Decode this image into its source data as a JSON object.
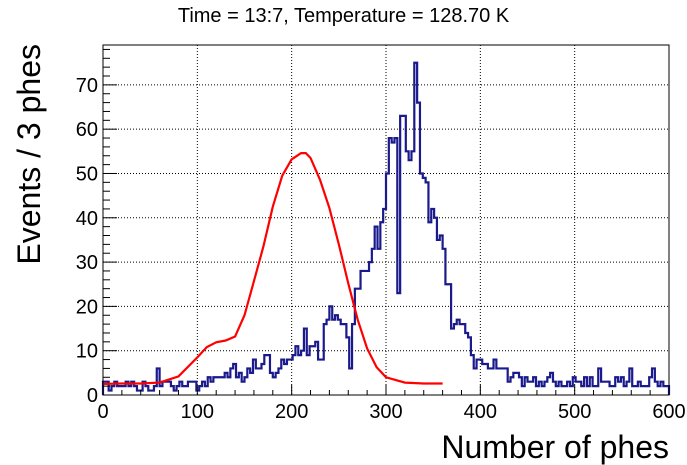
{
  "chart_data": {
    "type": "histogram",
    "title": "Time = 13:7, Temperature = 128.70 K",
    "xlabel": "Number of phes",
    "ylabel": "Events / 3 phes",
    "xlim": [
      0,
      600
    ],
    "ylim": [
      0,
      79
    ],
    "bin_width": 3,
    "grid": true,
    "x_ticks": [
      0,
      100,
      200,
      300,
      400,
      500,
      600
    ],
    "y_ticks": [
      0,
      10,
      20,
      30,
      40,
      50,
      60,
      70
    ],
    "colors": {
      "histogram": "#1a1a8c",
      "fit": "#ff0000",
      "grid": "#000000"
    },
    "series": [
      {
        "kind": "histogram",
        "values": [
          3,
          3,
          1,
          2,
          3,
          2,
          2,
          2,
          3,
          2,
          3,
          2,
          1,
          1,
          3,
          2,
          1,
          1,
          2,
          6,
          2,
          3,
          3,
          3,
          2,
          1,
          2,
          3,
          2,
          2,
          3,
          3,
          3,
          1,
          2,
          3,
          2,
          4,
          3,
          4,
          4,
          4,
          4,
          5,
          4,
          6,
          7,
          4,
          5,
          3,
          4,
          6,
          5,
          8,
          6,
          6,
          7,
          9,
          9,
          5,
          4,
          5,
          6,
          8,
          7,
          8,
          8,
          9,
          11,
          9,
          10,
          15,
          9,
          11,
          11,
          12,
          8,
          8,
          16,
          17,
          20,
          17,
          18,
          17,
          16,
          16,
          13,
          6,
          16,
          24,
          24,
          28,
          28,
          28,
          30,
          33,
          38,
          33,
          39,
          42,
          50,
          58,
          57,
          58,
          23,
          63,
          63,
          55,
          53,
          55,
          75,
          66,
          50,
          49,
          48,
          39,
          42,
          40,
          35,
          36,
          33,
          25,
          25,
          15,
          16,
          17,
          16,
          16,
          14,
          13,
          9,
          6,
          8,
          8,
          7,
          7,
          6,
          6,
          8,
          6,
          6,
          6,
          6,
          3,
          4,
          5,
          5,
          4,
          2,
          4,
          3,
          3,
          4,
          2,
          3,
          2,
          3,
          4,
          5,
          3,
          2,
          3,
          2,
          2,
          3,
          2,
          4,
          3,
          3,
          2,
          4,
          2,
          4,
          2,
          2,
          6,
          3,
          3,
          3,
          2,
          2,
          4,
          3,
          4,
          2,
          3,
          6,
          2,
          2,
          3,
          2,
          2,
          2,
          4,
          6,
          3,
          2,
          3,
          2,
          2
        ]
      },
      {
        "kind": "line",
        "x": [
          0,
          20,
          40,
          60,
          80,
          100,
          110,
          120,
          130,
          140,
          150,
          160,
          170,
          180,
          190,
          200,
          210,
          215,
          220,
          230,
          240,
          250,
          260,
          270,
          280,
          290,
          300,
          320,
          340,
          360
        ],
        "y": [
          2.5,
          2.6,
          2.6,
          2.8,
          4.2,
          8.5,
          10.8,
          11.9,
          12.3,
          13.2,
          18.0,
          25.7,
          33.5,
          42.5,
          49.5,
          53.2,
          54.6,
          54.6,
          53.5,
          48.6,
          42.2,
          34.0,
          25.2,
          17.0,
          10.5,
          6.3,
          4.0,
          2.8,
          2.6,
          2.6
        ]
      }
    ]
  }
}
